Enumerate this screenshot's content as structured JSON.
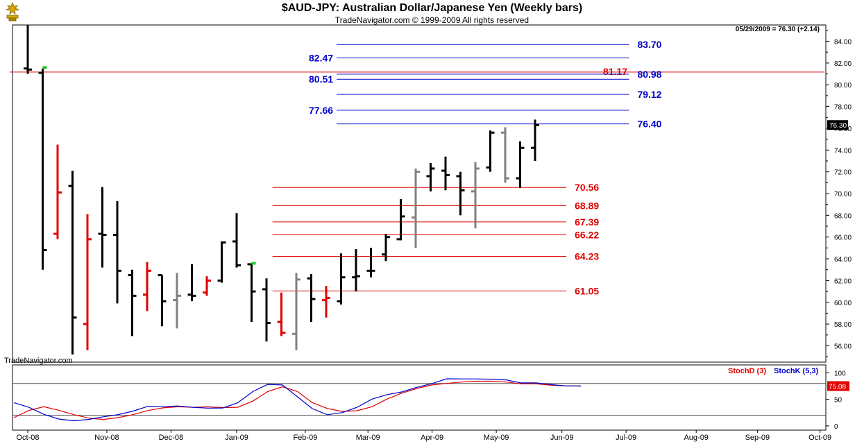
{
  "header": {
    "title": "$AUD-JPY:  Australian Dollar/Japanese Yen  (Weekly bars)",
    "subtitle": "TradeNavigator.com © 1999-2009 All rights reserved",
    "readout": "05/29/2009 = 76.30 (+2.14)",
    "watermark": "TradeNavigator.com"
  },
  "colors": {
    "up": "#000000",
    "down": "#e00000",
    "neutral": "#808080",
    "inside": "#22cc22",
    "fib_blue": "#0000cc",
    "fib_red": "#e00000",
    "stochD": "#e00000",
    "stochK": "#0000cc"
  },
  "chart_data": {
    "type": "ohlc",
    "title": "$AUD-JPY:  Australian Dollar/Japanese Yen  (Weekly bars)",
    "ylim": [
      54.5,
      85.5
    ],
    "yticks": [
      56.0,
      58.0,
      60.0,
      62.0,
      64.0,
      66.0,
      68.0,
      70.0,
      72.0,
      74.0,
      76.0,
      78.0,
      80.0,
      82.0,
      84.0
    ],
    "x_labels": [
      {
        "label": "Oct-08",
        "week": 0
      },
      {
        "label": "Nov-08",
        "week": 5.3
      },
      {
        "label": "Dec-08",
        "week": 9.6
      },
      {
        "label": "Jan-09",
        "week": 14
      },
      {
        "label": "Feb-09",
        "week": 18.6
      },
      {
        "label": "Mar-09",
        "week": 22.8
      },
      {
        "label": "Apr-09",
        "week": 27.1
      },
      {
        "label": "May-09",
        "week": 31.4
      },
      {
        "label": "Jun-09",
        "week": 35.8
      },
      {
        "label": "Jul-09",
        "week": 40.1
      },
      {
        "label": "Aug-09",
        "week": 44.8
      },
      {
        "label": "Sep-09",
        "week": 48.9
      },
      {
        "label": "Oct-09",
        "week": 53.1
      }
    ],
    "bars": [
      {
        "o": 81.5,
        "h": 85.5,
        "l": 81.0,
        "c": 81.4,
        "col": "up"
      },
      {
        "o": 81.1,
        "h": 81.5,
        "l": 63.0,
        "c": 64.8,
        "col": "up"
      },
      {
        "o": 66.3,
        "h": 74.5,
        "l": 65.8,
        "c": 70.1,
        "col": "down"
      },
      {
        "o": 70.7,
        "h": 72.1,
        "l": 55.2,
        "c": 58.6,
        "col": "up"
      },
      {
        "o": 58.0,
        "h": 68.1,
        "l": 55.6,
        "c": 65.8,
        "col": "down"
      },
      {
        "o": 66.3,
        "h": 70.6,
        "l": 63.2,
        "c": 66.2,
        "col": "up"
      },
      {
        "o": 66.2,
        "h": 69.3,
        "l": 59.9,
        "c": 62.9,
        "col": "up"
      },
      {
        "o": 62.5,
        "h": 63.0,
        "l": 56.9,
        "c": 60.6,
        "col": "up"
      },
      {
        "o": 60.7,
        "h": 63.7,
        "l": 59.2,
        "c": 62.9,
        "col": "down"
      },
      {
        "o": 62.5,
        "h": 62.5,
        "l": 57.8,
        "c": 60.1,
        "col": "up"
      },
      {
        "o": 60.2,
        "h": 62.7,
        "l": 57.6,
        "c": 60.6,
        "col": "neutral"
      },
      {
        "o": 60.7,
        "h": 63.5,
        "l": 60.1,
        "c": 60.6,
        "col": "up"
      },
      {
        "o": 60.9,
        "h": 62.4,
        "l": 60.6,
        "c": 62.0,
        "col": "down"
      },
      {
        "o": 62.0,
        "h": 65.6,
        "l": 61.8,
        "c": 65.5,
        "col": "up"
      },
      {
        "o": 65.6,
        "h": 68.2,
        "l": 63.2,
        "c": 63.4,
        "col": "up"
      },
      {
        "o": 63.5,
        "h": 63.5,
        "l": 58.2,
        "c": 61.0,
        "col": "up"
      },
      {
        "o": 61.2,
        "h": 62.2,
        "l": 56.4,
        "c": 58.1,
        "col": "up"
      },
      {
        "o": 58.2,
        "h": 60.9,
        "l": 56.9,
        "c": 57.2,
        "col": "down"
      },
      {
        "o": 57.1,
        "h": 62.7,
        "l": 55.6,
        "c": 62.1,
        "col": "neutral"
      },
      {
        "o": 62.2,
        "h": 62.6,
        "l": 58.2,
        "c": 60.3,
        "col": "up"
      },
      {
        "o": 60.2,
        "h": 61.5,
        "l": 58.6,
        "c": 60.4,
        "col": "down"
      },
      {
        "o": 60.1,
        "h": 64.5,
        "l": 59.8,
        "c": 62.3,
        "col": "up"
      },
      {
        "o": 62.3,
        "h": 64.9,
        "l": 61.0,
        "c": 62.4,
        "col": "up"
      },
      {
        "o": 62.9,
        "h": 65.0,
        "l": 62.3,
        "c": 62.9,
        "col": "up"
      },
      {
        "o": 64.4,
        "h": 66.3,
        "l": 63.8,
        "c": 66.0,
        "col": "up"
      },
      {
        "o": 65.8,
        "h": 69.5,
        "l": 65.7,
        "c": 67.9,
        "col": "up"
      },
      {
        "o": 67.8,
        "h": 72.3,
        "l": 65.0,
        "c": 72.0,
        "col": "neutral"
      },
      {
        "o": 71.6,
        "h": 72.8,
        "l": 70.2,
        "c": 72.3,
        "col": "up"
      },
      {
        "o": 72.1,
        "h": 73.4,
        "l": 70.3,
        "c": 71.7,
        "col": "up"
      },
      {
        "o": 71.6,
        "h": 72.0,
        "l": 68.0,
        "c": 70.3,
        "col": "up"
      },
      {
        "o": 70.2,
        "h": 72.9,
        "l": 66.8,
        "c": 72.3,
        "col": "neutral"
      },
      {
        "o": 72.4,
        "h": 75.8,
        "l": 72.0,
        "c": 75.6,
        "col": "up"
      },
      {
        "o": 75.6,
        "h": 76.1,
        "l": 71.0,
        "c": 71.4,
        "col": "neutral"
      },
      {
        "o": 71.4,
        "h": 74.8,
        "l": 70.5,
        "c": 74.2,
        "col": "up"
      },
      {
        "o": 74.2,
        "h": 76.8,
        "l": 73.0,
        "c": 76.3,
        "col": "up"
      }
    ],
    "inside_marks": [
      {
        "week": 1,
        "value": 81.4
      },
      {
        "week": 15,
        "value": 63.4
      }
    ],
    "horizontal_lines": [
      {
        "value": 81.17,
        "color": "fib_red",
        "from_week": -1.2,
        "to_week": 53.4,
        "label": "81.17",
        "label_pos": "right-inner"
      },
      {
        "value": 83.7,
        "color": "fib_blue",
        "from_week": 20.7,
        "to_week": 40.3,
        "label": "83.70",
        "label_pos": "right"
      },
      {
        "value": 82.47,
        "color": "fib_blue",
        "from_week": 20.7,
        "to_week": 40.3,
        "label": "82.47",
        "label_pos": "left"
      },
      {
        "value": 80.98,
        "color": "fib_blue",
        "from_week": 20.7,
        "to_week": 40.3,
        "label": "80.98",
        "label_pos": "right"
      },
      {
        "value": 80.51,
        "color": "fib_blue",
        "from_week": 20.7,
        "to_week": 40.3,
        "label": "80.51",
        "label_pos": "left"
      },
      {
        "value": 79.12,
        "color": "fib_blue",
        "from_week": 20.7,
        "to_week": 40.3,
        "label": "79.12",
        "label_pos": "right"
      },
      {
        "value": 77.66,
        "color": "fib_blue",
        "from_week": 20.7,
        "to_week": 40.3,
        "label": "77.66",
        "label_pos": "left"
      },
      {
        "value": 76.4,
        "color": "fib_blue",
        "from_week": 20.7,
        "to_week": 40.3,
        "label": "76.40",
        "label_pos": "right"
      },
      {
        "value": 70.56,
        "color": "fib_red",
        "from_week": 16.4,
        "to_week": 36.1,
        "label": "70.56",
        "label_pos": "right"
      },
      {
        "value": 68.89,
        "color": "fib_red",
        "from_week": 16.4,
        "to_week": 36.1,
        "label": "68.89",
        "label_pos": "right"
      },
      {
        "value": 67.39,
        "color": "fib_red",
        "from_week": 16.4,
        "to_week": 36.1,
        "label": "67.39",
        "label_pos": "right"
      },
      {
        "value": 66.22,
        "color": "fib_red",
        "from_week": 16.4,
        "to_week": 36.1,
        "label": "66.22",
        "label_pos": "right"
      },
      {
        "value": 64.23,
        "color": "fib_red",
        "from_week": 16.4,
        "to_week": 36.1,
        "label": "64.23",
        "label_pos": "right"
      },
      {
        "value": 61.05,
        "color": "fib_red",
        "from_week": 16.4,
        "to_week": 36.1,
        "label": "61.05",
        "label_pos": "right"
      }
    ],
    "last_price": "76.30",
    "stochastic": {
      "legend_d": "StochD (3)",
      "legend_k": "StochK (5,3)",
      "ylim": [
        -8,
        115
      ],
      "yticks": [
        0,
        50,
        100
      ],
      "ref_lines": [
        80,
        20
      ],
      "last_value": "75.08",
      "stochD": [
        15.6,
        29.0,
        36.1,
        29.6,
        21.3,
        14.7,
        12.2,
        15.6,
        21.3,
        29.0,
        34.0,
        36.1,
        35.0,
        36.0,
        34.5,
        35.0,
        46.5,
        64.5,
        73.8,
        64.9,
        44.0,
        33.0,
        27.2,
        28.6,
        36.1,
        50.5,
        61.7,
        70.5,
        77.2,
        80.0,
        82.7,
        84.2,
        84.2,
        82.7,
        79.3,
        79.3,
        76.7,
        75.5,
        75.5
      ],
      "stochK": [
        43.8,
        35.0,
        22.0,
        13.0,
        9.7,
        12.2,
        17.1,
        21.3,
        28.0,
        37.0,
        36.1,
        37.5,
        35.0,
        33.5,
        33.8,
        43.5,
        64.5,
        78.2,
        77.2,
        55.0,
        32.6,
        21.0,
        25.0,
        35.0,
        50.5,
        58.9,
        64.0,
        72.7,
        79.5,
        88.8,
        88.6,
        88.6,
        88.0,
        86.8,
        81.0,
        81.2,
        77.9,
        75.5,
        75.08
      ]
    }
  }
}
